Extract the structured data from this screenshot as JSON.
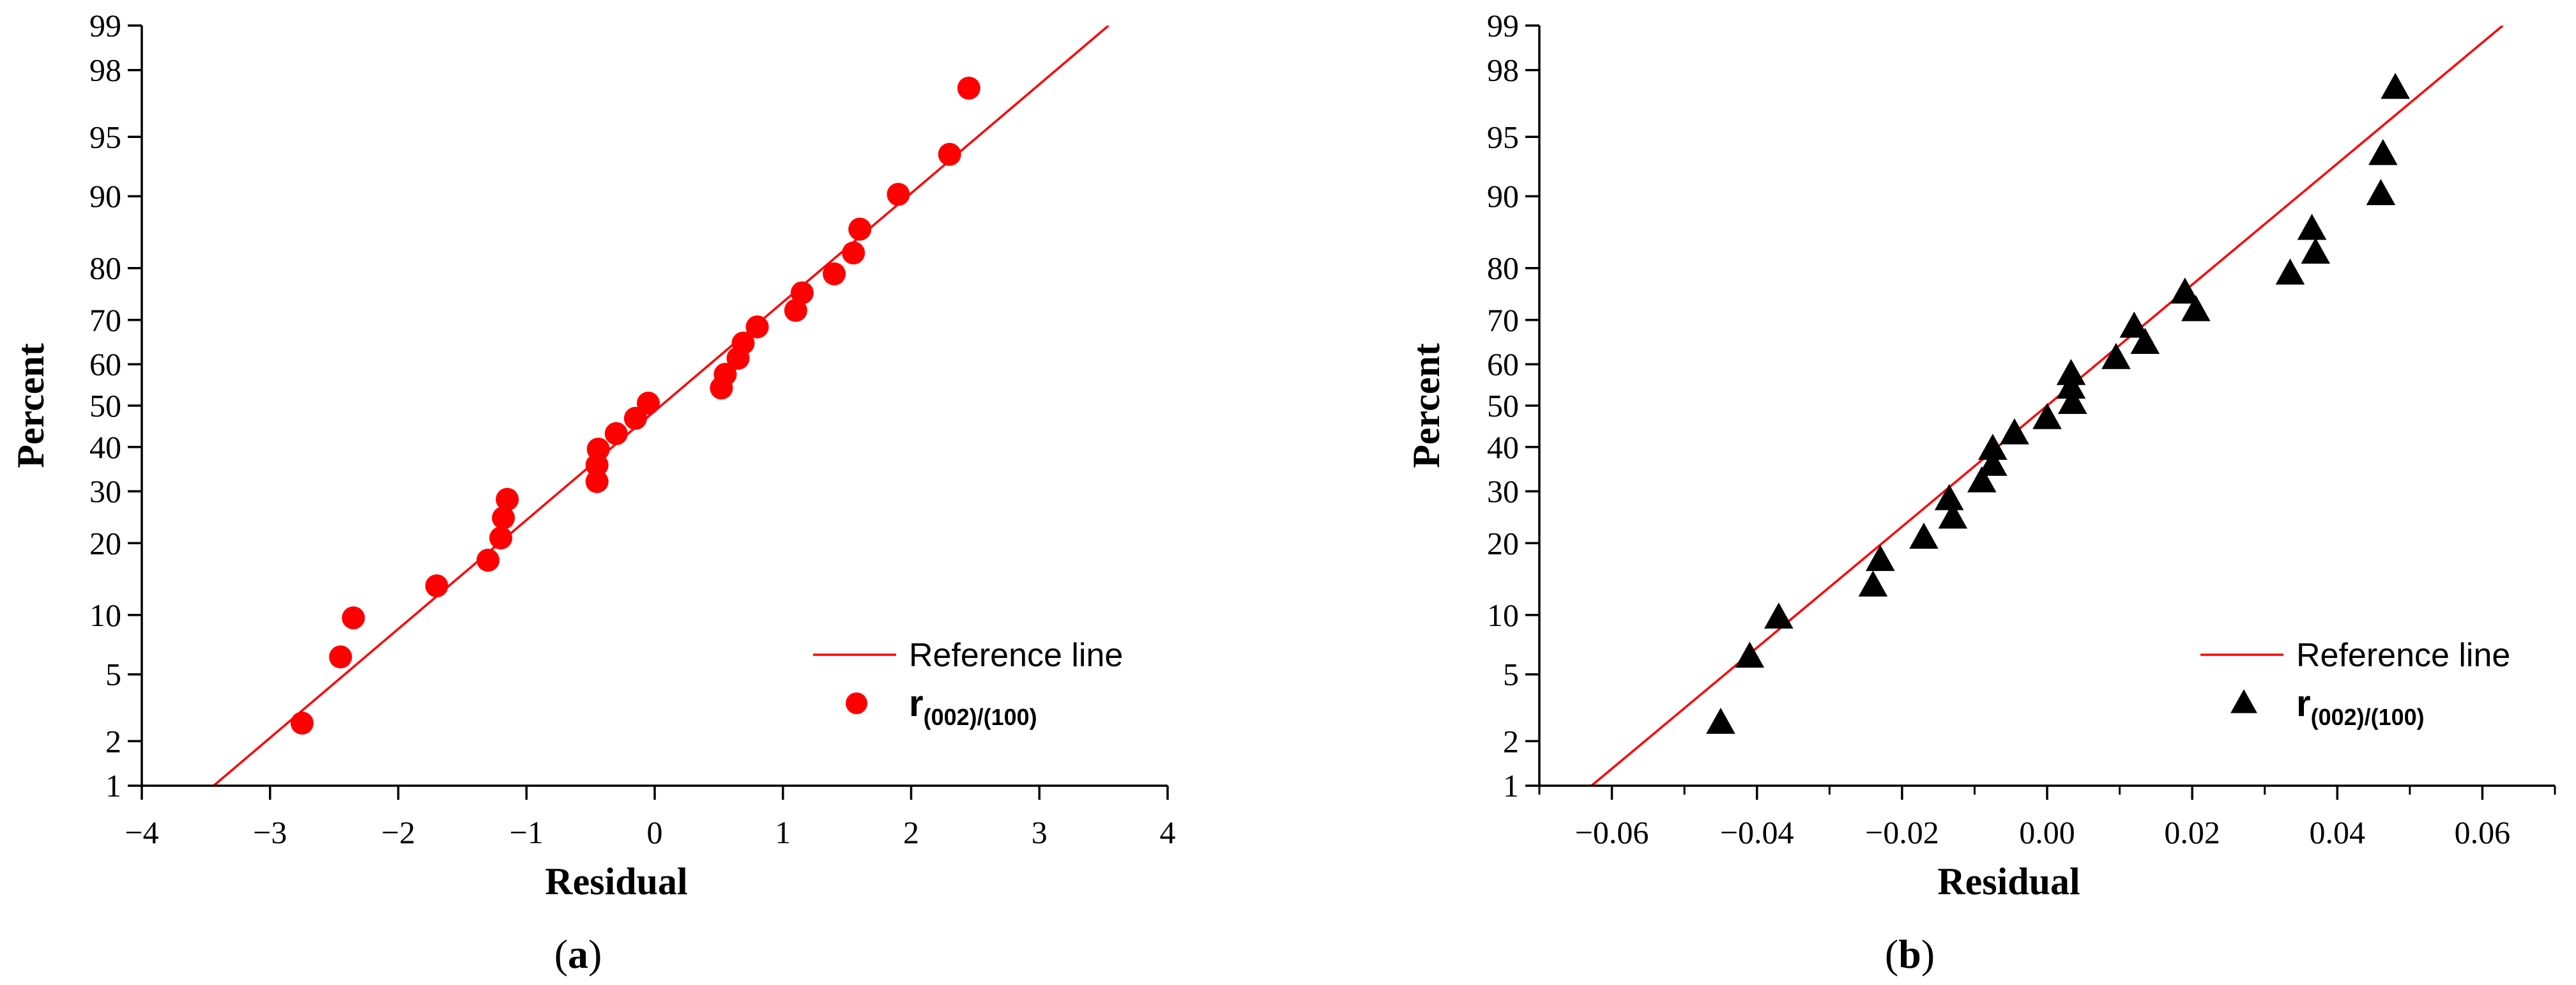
{
  "chart_data": [
    {
      "type": "scatter",
      "subtitle": "(a)",
      "panel_letter": "a",
      "xlabel": "Residual",
      "ylabel": "Percent",
      "xlim": [
        -4,
        4
      ],
      "x_ticks": [
        -4,
        -3,
        -2,
        -1,
        0,
        1,
        2,
        3,
        4
      ],
      "x_tick_labels": [
        "−4",
        "−3",
        "−2",
        "−1",
        "0",
        "1",
        "2",
        "3",
        "4"
      ],
      "y_scale": "normal-probability",
      "y_ticks": [
        1,
        2,
        5,
        10,
        20,
        30,
        40,
        50,
        60,
        70,
        80,
        90,
        95,
        98,
        99
      ],
      "y_tick_labels": [
        "1",
        "2",
        "5",
        "10",
        "20",
        "30",
        "40",
        "50",
        "60",
        "70",
        "80",
        "90",
        "95",
        "98",
        "99"
      ],
      "marker": "circle",
      "marker_color": "#ff0000",
      "legend": {
        "position": "bottom-right",
        "line_label": "Reference line",
        "series_label_main": "r",
        "series_label_sub": "(002)/(100)"
      },
      "series": [
        {
          "name": "r(002)/(100)",
          "points": [
            {
              "x": -2.75,
              "y": 2.6
            },
            {
              "x": -2.45,
              "y": 6.2
            },
            {
              "x": -2.35,
              "y": 9.7
            },
            {
              "x": -1.7,
              "y": 13.5
            },
            {
              "x": -1.3,
              "y": 17.2
            },
            {
              "x": -1.2,
              "y": 20.9
            },
            {
              "x": -1.18,
              "y": 24.6
            },
            {
              "x": -1.15,
              "y": 28.3
            },
            {
              "x": -0.45,
              "y": 32.1
            },
            {
              "x": -0.45,
              "y": 35.8
            },
            {
              "x": -0.44,
              "y": 39.5
            },
            {
              "x": -0.3,
              "y": 43.2
            },
            {
              "x": -0.15,
              "y": 46.9
            },
            {
              "x": -0.05,
              "y": 50.6
            },
            {
              "x": 0.52,
              "y": 54.3
            },
            {
              "x": 0.55,
              "y": 57.6
            },
            {
              "x": 0.65,
              "y": 61.4
            },
            {
              "x": 0.69,
              "y": 64.9
            },
            {
              "x": 0.8,
              "y": 68.5
            },
            {
              "x": 1.1,
              "y": 72.0
            },
            {
              "x": 1.15,
              "y": 75.5
            },
            {
              "x": 1.4,
              "y": 79.0
            },
            {
              "x": 1.55,
              "y": 82.5
            },
            {
              "x": 1.6,
              "y": 86.0
            },
            {
              "x": 1.9,
              "y": 90.2
            },
            {
              "x": 2.3,
              "y": 93.8
            },
            {
              "x": 2.45,
              "y": 97.4
            }
          ]
        }
      ],
      "reference_line": {
        "color": "#ff0000",
        "mean": 0.05,
        "sd": 1.5
      }
    },
    {
      "type": "scatter",
      "subtitle": "(b)",
      "panel_letter": "b",
      "xlabel": "Residual",
      "ylabel": "Percent",
      "xlim": [
        -0.07,
        0.07
      ],
      "x_ticks": [
        -0.06,
        -0.04,
        -0.02,
        0.0,
        0.02,
        0.04,
        0.06
      ],
      "x_tick_labels": [
        "−0.06",
        "−0.04",
        "−0.02",
        "0.00",
        "0.02",
        "0.04",
        "0.06"
      ],
      "x_minor_ticks": [
        -0.07,
        -0.05,
        -0.03,
        -0.01,
        0.01,
        0.03,
        0.05,
        0.07
      ],
      "y_scale": "normal-probability",
      "y_ticks": [
        1,
        2,
        5,
        10,
        20,
        30,
        40,
        50,
        60,
        70,
        80,
        90,
        95,
        98,
        99
      ],
      "y_tick_labels": [
        "1",
        "2",
        "5",
        "10",
        "20",
        "30",
        "40",
        "50",
        "60",
        "70",
        "80",
        "90",
        "95",
        "98",
        "99"
      ],
      "marker": "triangle",
      "marker_color": "#000000",
      "legend": {
        "position": "bottom-right",
        "line_label": "Reference line",
        "series_label_main": "r",
        "series_label_sub": "(002)/(100)"
      },
      "series": [
        {
          "name": "r(002)/(100)",
          "points": [
            {
              "x": -0.045,
              "y": 2.6
            },
            {
              "x": -0.041,
              "y": 6.2
            },
            {
              "x": -0.037,
              "y": 9.7
            },
            {
              "x": -0.024,
              "y": 13.5
            },
            {
              "x": -0.023,
              "y": 17.2
            },
            {
              "x": -0.017,
              "y": 20.9
            },
            {
              "x": -0.013,
              "y": 24.6
            },
            {
              "x": -0.0135,
              "y": 28.3
            },
            {
              "x": -0.009,
              "y": 32.1
            },
            {
              "x": -0.0075,
              "y": 35.8
            },
            {
              "x": -0.0075,
              "y": 39.5
            },
            {
              "x": -0.0045,
              "y": 43.2
            },
            {
              "x": 0.0,
              "y": 46.9
            },
            {
              "x": 0.0035,
              "y": 50.6
            },
            {
              "x": 0.0033,
              "y": 54.3
            },
            {
              "x": 0.0033,
              "y": 57.6
            },
            {
              "x": 0.0095,
              "y": 61.4
            },
            {
              "x": 0.0135,
              "y": 64.9
            },
            {
              "x": 0.012,
              "y": 68.5
            },
            {
              "x": 0.0205,
              "y": 72.0
            },
            {
              "x": 0.019,
              "y": 75.5
            },
            {
              "x": 0.0335,
              "y": 79.0
            },
            {
              "x": 0.037,
              "y": 82.5
            },
            {
              "x": 0.0365,
              "y": 86.0
            },
            {
              "x": 0.046,
              "y": 90.2
            },
            {
              "x": 0.0463,
              "y": 93.8
            },
            {
              "x": 0.048,
              "y": 97.4
            }
          ]
        }
      ],
      "reference_line": {
        "color": "#ff0000",
        "mean": 0.0,
        "sd": 0.027
      }
    }
  ]
}
